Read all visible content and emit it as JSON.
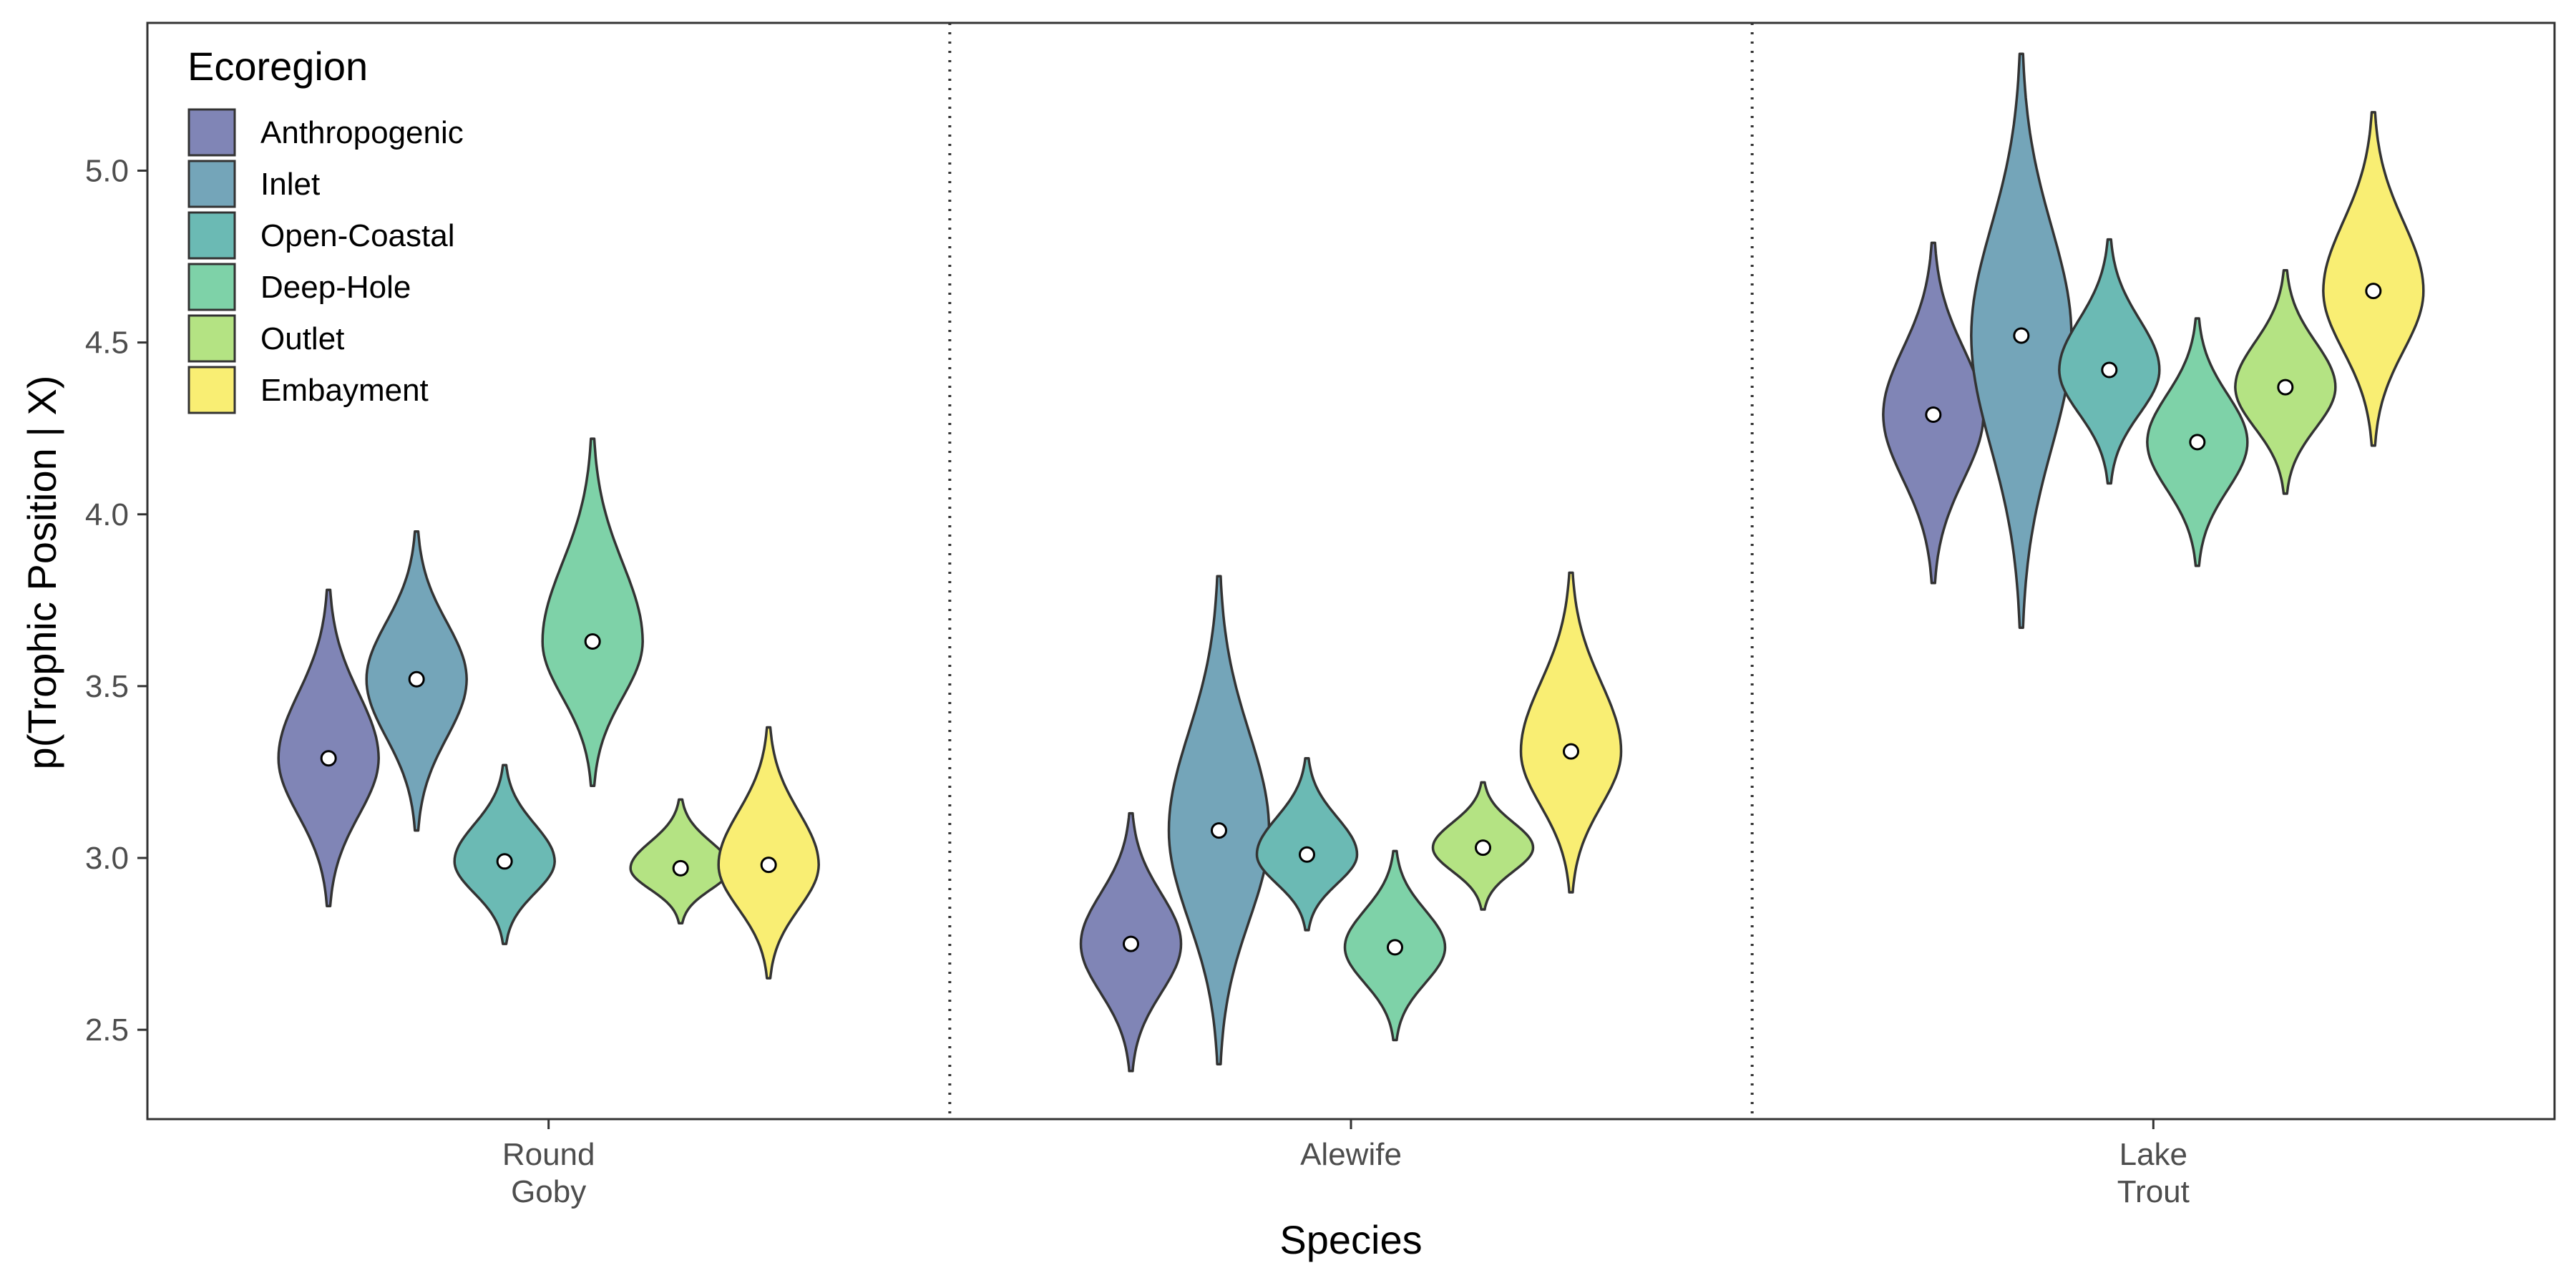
{
  "chart_data": {
    "type": "violin",
    "xlabel": "Species",
    "ylabel": "p(Trophic Position | X)",
    "ylim": [
      2.24,
      5.43
    ],
    "yticks": [
      2.5,
      3.0,
      3.5,
      4.0,
      4.5,
      5.0
    ],
    "ytick_labels": [
      "2.5",
      "3.0",
      "3.5",
      "4.0",
      "4.5",
      "5.0"
    ],
    "categories": [
      {
        "lines": [
          "Round",
          "Goby"
        ]
      },
      {
        "lines": [
          "Alewife"
        ]
      },
      {
        "lines": [
          "Lake",
          "Trout"
        ]
      }
    ],
    "separators": "dotted vertical lines between species",
    "legend": {
      "title": "Ecoregion",
      "position": "top-left",
      "items": [
        {
          "name": "Anthropogenic",
          "color": "#8085B6"
        },
        {
          "name": "Inlet",
          "color": "#74A5B9"
        },
        {
          "name": "Open-Coastal",
          "color": "#6BBAB4"
        },
        {
          "name": "Deep-Hole",
          "color": "#7ED2A8"
        },
        {
          "name": "Outlet",
          "color": "#B4E383"
        },
        {
          "name": "Embayment",
          "color": "#F9EE73"
        }
      ]
    },
    "series": [
      {
        "species": "Round Goby",
        "ecoregion": "Anthropogenic",
        "median": 3.29,
        "min": 2.86,
        "max": 3.78
      },
      {
        "species": "Round Goby",
        "ecoregion": "Inlet",
        "median": 3.52,
        "min": 3.08,
        "max": 3.95
      },
      {
        "species": "Round Goby",
        "ecoregion": "Open-Coastal",
        "median": 2.99,
        "min": 2.75,
        "max": 3.27
      },
      {
        "species": "Round Goby",
        "ecoregion": "Deep-Hole",
        "median": 3.63,
        "min": 3.21,
        "max": 4.22
      },
      {
        "species": "Round Goby",
        "ecoregion": "Outlet",
        "median": 2.97,
        "min": 2.81,
        "max": 3.17
      },
      {
        "species": "Round Goby",
        "ecoregion": "Embayment",
        "median": 2.98,
        "min": 2.65,
        "max": 3.38
      },
      {
        "species": "Alewife",
        "ecoregion": "Anthropogenic",
        "median": 2.75,
        "min": 2.38,
        "max": 3.13
      },
      {
        "species": "Alewife",
        "ecoregion": "Inlet",
        "median": 3.08,
        "min": 2.4,
        "max": 3.82
      },
      {
        "species": "Alewife",
        "ecoregion": "Open-Coastal",
        "median": 3.01,
        "min": 2.79,
        "max": 3.29
      },
      {
        "species": "Alewife",
        "ecoregion": "Deep-Hole",
        "median": 2.74,
        "min": 2.47,
        "max": 3.02
      },
      {
        "species": "Alewife",
        "ecoregion": "Outlet",
        "median": 3.03,
        "min": 2.85,
        "max": 3.22
      },
      {
        "species": "Alewife",
        "ecoregion": "Embayment",
        "median": 3.31,
        "min": 2.9,
        "max": 3.83
      },
      {
        "species": "Lake Trout",
        "ecoregion": "Anthropogenic",
        "median": 4.29,
        "min": 3.8,
        "max": 4.79
      },
      {
        "species": "Lake Trout",
        "ecoregion": "Inlet",
        "median": 4.52,
        "min": 3.67,
        "max": 5.34
      },
      {
        "species": "Lake Trout",
        "ecoregion": "Open-Coastal",
        "median": 4.42,
        "min": 4.09,
        "max": 4.8
      },
      {
        "species": "Lake Trout",
        "ecoregion": "Deep-Hole",
        "median": 4.21,
        "min": 3.85,
        "max": 4.57
      },
      {
        "species": "Lake Trout",
        "ecoregion": "Outlet",
        "median": 4.37,
        "min": 4.06,
        "max": 4.71
      },
      {
        "species": "Lake Trout",
        "ecoregion": "Embayment",
        "median": 4.65,
        "min": 4.2,
        "max": 5.17
      }
    ]
  }
}
